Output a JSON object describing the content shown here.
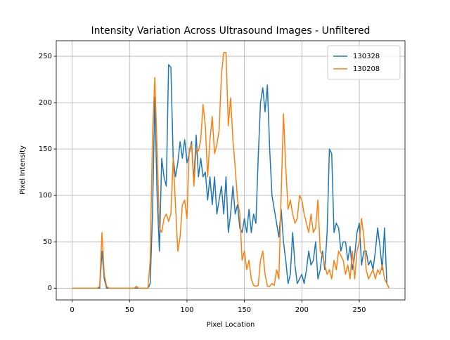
{
  "chart_data": {
    "type": "line",
    "title": "Intensity Variation Across Ultrasound Images - Unfiltered",
    "x_label": "Pixel Location",
    "y_label": "Pixel Intensity",
    "x": [
      0,
      2,
      4,
      6,
      8,
      10,
      12,
      14,
      16,
      18,
      20,
      22,
      24,
      26,
      28,
      30,
      32,
      34,
      36,
      38,
      40,
      42,
      44,
      46,
      48,
      50,
      52,
      54,
      56,
      58,
      60,
      62,
      64,
      66,
      68,
      70,
      72,
      74,
      76,
      78,
      80,
      82,
      84,
      86,
      88,
      90,
      92,
      94,
      96,
      98,
      100,
      102,
      104,
      106,
      108,
      110,
      112,
      114,
      116,
      118,
      120,
      122,
      124,
      126,
      128,
      130,
      132,
      134,
      136,
      138,
      140,
      142,
      144,
      146,
      148,
      150,
      152,
      154,
      156,
      158,
      160,
      162,
      164,
      166,
      168,
      170,
      172,
      174,
      176,
      178,
      180,
      182,
      184,
      186,
      188,
      190,
      192,
      194,
      196,
      198,
      200,
      202,
      204,
      206,
      208,
      210,
      212,
      214,
      216,
      218,
      220,
      222,
      224,
      226,
      228,
      230,
      232,
      234,
      236,
      238,
      240,
      242,
      244,
      246,
      248,
      250,
      252,
      254,
      256,
      258,
      260,
      262,
      264,
      266,
      268,
      270,
      272,
      274,
      276
    ],
    "series": [
      {
        "name": "130328",
        "color": "#1f77b4",
        "values": [
          0,
          0,
          0,
          0,
          0,
          0,
          0,
          0,
          0,
          0,
          0,
          0,
          0,
          40,
          10,
          0,
          0,
          0,
          0,
          0,
          0,
          0,
          0,
          0,
          0,
          0,
          0,
          0,
          0,
          0,
          0,
          0,
          0,
          0,
          5,
          80,
          206,
          100,
          40,
          140,
          120,
          110,
          241,
          238,
          140,
          120,
          135,
          158,
          140,
          160,
          135,
          145,
          158,
          115,
          165,
          120,
          140,
          120,
          125,
          95,
          120,
          90,
          120,
          80,
          95,
          110,
          80,
          120,
          60,
          80,
          110,
          80,
          90,
          65,
          60,
          75,
          60,
          85,
          60,
          80,
          70,
          140,
          200,
          216,
          190,
          219,
          150,
          100,
          85,
          70,
          55,
          85,
          50,
          30,
          5,
          15,
          60,
          25,
          5,
          10,
          15,
          5,
          20,
          40,
          25,
          30,
          50,
          10,
          20,
          40,
          20,
          60,
          150,
          145,
          60,
          70,
          65,
          40,
          50,
          50,
          30,
          45,
          20,
          35,
          60,
          70,
          25,
          40,
          40,
          25,
          30,
          20,
          40,
          65,
          45,
          20,
          65,
          5,
          0
        ]
      },
      {
        "name": "130208",
        "color": "#ff7f0e",
        "values": [
          0,
          0,
          0,
          0,
          0,
          0,
          0,
          0,
          0,
          0,
          0,
          0,
          2,
          60,
          15,
          2,
          0,
          0,
          0,
          0,
          0,
          0,
          0,
          0,
          0,
          0,
          0,
          0,
          2,
          0,
          0,
          0,
          0,
          0,
          30,
          165,
          227,
          150,
          65,
          60,
          75,
          80,
          72,
          80,
          140,
          90,
          40,
          55,
          90,
          95,
          75,
          150,
          155,
          110,
          150,
          148,
          160,
          198,
          175,
          120,
          160,
          185,
          145,
          155,
          170,
          230,
          254,
          254,
          175,
          205,
          160,
          130,
          95,
          80,
          30,
          40,
          20,
          30,
          10,
          3,
          2,
          3,
          30,
          40,
          15,
          2,
          2,
          5,
          3,
          20,
          10,
          100,
          188,
          130,
          85,
          95,
          80,
          70,
          75,
          100,
          95,
          80,
          70,
          60,
          80,
          60,
          65,
          95,
          40,
          35,
          25,
          15,
          20,
          10,
          30,
          20,
          40,
          35,
          30,
          15,
          25,
          10,
          40,
          10,
          40,
          50,
          75,
          55,
          20,
          10,
          15,
          20,
          10,
          20,
          15,
          25,
          10,
          5,
          0
        ]
      }
    ],
    "xlim": [
      -13.8,
      289.8
    ],
    "ylim": [
      -12.7,
      266.7
    ],
    "xticks": [
      0,
      50,
      100,
      150,
      200,
      250
    ],
    "yticks": [
      0,
      50,
      100,
      150,
      200,
      250
    ],
    "grid": true,
    "legend": "upper right"
  }
}
